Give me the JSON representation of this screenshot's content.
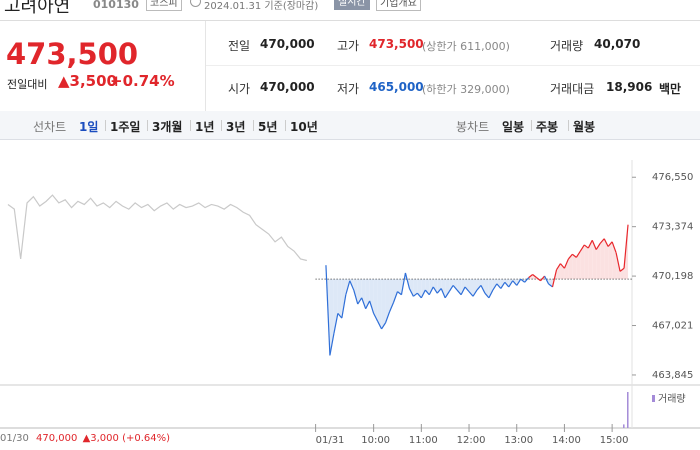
{
  "header": {
    "name": "고려아연",
    "code": "010130",
    "market": "코스피",
    "date": "2024.01.31 기준(장마감)",
    "realtime": "실시간",
    "company": "기업개요"
  },
  "quote": {
    "price": "473,500",
    "change_label": "전일대비",
    "change": "▲3,500",
    "change_pct": "+0.74%"
  },
  "stats": [
    {
      "label": "전일",
      "value": "470,000"
    },
    {
      "label": "고가",
      "value": "473,500",
      "note": "(상한가 611,000)",
      "color": "#e0262b"
    },
    {
      "label": "거래량",
      "value": "40,070"
    },
    {
      "label": "시가",
      "value": "470,000"
    },
    {
      "label": "저가",
      "value": "465,000",
      "note": "(하한가 329,000)",
      "color": "#1f63c6"
    },
    {
      "label": "거래대금",
      "value": "18,906",
      "unit": "백만"
    }
  ],
  "tabs": {
    "line_label": "선차트",
    "line": [
      "1일",
      "1주일",
      "3개월",
      "1년",
      "3년",
      "5년",
      "10년"
    ],
    "candle_label": "봉차트",
    "candle": [
      "일봉",
      "주봉",
      "월봉"
    ]
  },
  "chart_data": {
    "type": "line",
    "xlim": [
      -410,
      385
    ],
    "ylim": [
      463200,
      478300
    ],
    "yticks": [
      {
        "value": 476550,
        "label": "476,550"
      },
      {
        "value": 473374,
        "label": "473,374"
      },
      {
        "value": 470198,
        "label": "470,198"
      },
      {
        "value": 467021,
        "label": "467,021"
      },
      {
        "value": 463845,
        "label": "463,845"
      }
    ],
    "xticks": [
      {
        "value": -13,
        "label": "01/31"
      },
      {
        "value": 60,
        "label": "10:00"
      },
      {
        "value": 120,
        "label": "11:00"
      },
      {
        "value": 180,
        "label": "12:00"
      },
      {
        "value": 240,
        "label": "13:00"
      },
      {
        "value": 300,
        "label": "14:00"
      },
      {
        "value": 360,
        "label": "15:00"
      }
    ],
    "baseline": 470000,
    "series": [
      {
        "color": "#c9c9c9",
        "x": [
          -400,
          -392,
          -384,
          -376,
          -368,
          -360,
          -352,
          -344,
          -336,
          -328,
          -320,
          -312,
          -304,
          -296,
          -288,
          -280,
          -272,
          -264,
          -256,
          -248,
          -240,
          -232,
          -224,
          -216,
          -208,
          -200,
          -192,
          -184,
          -176,
          -168,
          -160,
          -152,
          -144,
          -136,
          -128,
          -120,
          -112,
          -104,
          -96,
          -88,
          -80,
          -72,
          -64,
          -56,
          -48,
          -40,
          -32,
          -24
        ],
        "values": [
          474800,
          474500,
          471300,
          474900,
          475300,
          474700,
          475000,
          475400,
          474900,
          475100,
          474600,
          475000,
          474800,
          475200,
          474700,
          474900,
          474600,
          475000,
          474700,
          474500,
          474900,
          474600,
          474800,
          474400,
          474700,
          474900,
          474500,
          474800,
          474600,
          474700,
          474900,
          474600,
          474800,
          474700,
          474500,
          474800,
          474600,
          474300,
          474100,
          473500,
          473200,
          472900,
          472400,
          472700,
          472100,
          471800,
          471300,
          471200
        ]
      },
      {
        "color": "#2f6fd8",
        "up_color": "#e8272c",
        "fill_color": "#dde8f7",
        "up_fill_color": "#fbe1e1",
        "x": [
          0,
          5,
          10,
          15,
          20,
          25,
          30,
          35,
          40,
          45,
          50,
          55,
          60,
          65,
          70,
          75,
          80,
          85,
          90,
          95,
          100,
          105,
          110,
          115,
          120,
          125,
          130,
          135,
          140,
          145,
          150,
          155,
          160,
          165,
          170,
          175,
          180,
          185,
          190,
          195,
          200,
          205,
          210,
          215,
          220,
          225,
          230,
          235,
          240,
          245,
          250,
          255,
          260,
          265,
          270,
          275,
          280,
          285,
          290,
          295,
          300,
          305,
          310,
          315,
          320,
          325,
          330,
          335,
          340,
          345,
          350,
          355,
          360,
          365,
          370,
          375,
          380
        ],
        "values": [
          470900,
          465100,
          466500,
          467800,
          467500,
          469000,
          469900,
          469300,
          468400,
          468800,
          468100,
          468600,
          467800,
          467300,
          466800,
          467200,
          467900,
          468500,
          469200,
          469000,
          470400,
          469400,
          468900,
          469100,
          468800,
          469300,
          469000,
          469500,
          469100,
          469400,
          468800,
          469200,
          469600,
          469300,
          469000,
          469500,
          469200,
          468900,
          469300,
          469600,
          469100,
          468800,
          469300,
          469700,
          469400,
          469800,
          469500,
          469900,
          469600,
          470000,
          469800,
          470100,
          470300,
          470100,
          469900,
          470200,
          469700,
          469500,
          470600,
          471000,
          470700,
          471300,
          471600,
          471400,
          471800,
          472200,
          472000,
          472500,
          471900,
          472300,
          472600,
          472100,
          472400,
          471700,
          470500,
          470700,
          473500
        ]
      }
    ],
    "volume": {
      "label": "거래량",
      "color": "#a48bd8",
      "x": [
        375,
        380
      ],
      "values": [
        900,
        9000
      ],
      "ylim": [
        0,
        9500
      ]
    }
  },
  "info": {
    "date": "01/30",
    "price": "470,000",
    "change": "▲3,000",
    "pct": "(+0.64%)"
  }
}
